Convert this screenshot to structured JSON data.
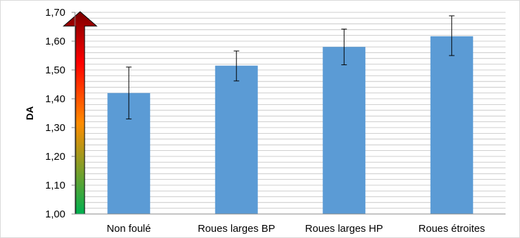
{
  "chart_data": {
    "type": "bar",
    "title": "",
    "xlabel": "",
    "ylabel": "DA",
    "ylim": [
      1.0,
      1.7
    ],
    "y_ticks": [
      "1,00",
      "1,10",
      "1,20",
      "1,30",
      "1,40",
      "1,50",
      "1,60",
      "1,70"
    ],
    "y_tick_values": [
      1.0,
      1.1,
      1.2,
      1.3,
      1.4,
      1.5,
      1.6,
      1.7
    ],
    "minor_gridline_step": 0.02,
    "categories": [
      "Non foulé",
      "Roues larges BP",
      "Roues larges HP",
      "Roues étroites"
    ],
    "values": [
      1.42,
      1.515,
      1.58,
      1.617
    ],
    "error_low": [
      1.33,
      1.462,
      1.518,
      1.55
    ],
    "error_high": [
      1.51,
      1.566,
      1.642,
      1.688
    ],
    "bar_color": "#5b9bd5",
    "error_bar_color": "#000000",
    "gridline_color": "#bfbfbf",
    "arrow_gradient": [
      "#00b050",
      "#ff8c00",
      "#ff0000",
      "#7b0000"
    ],
    "grid": true
  }
}
